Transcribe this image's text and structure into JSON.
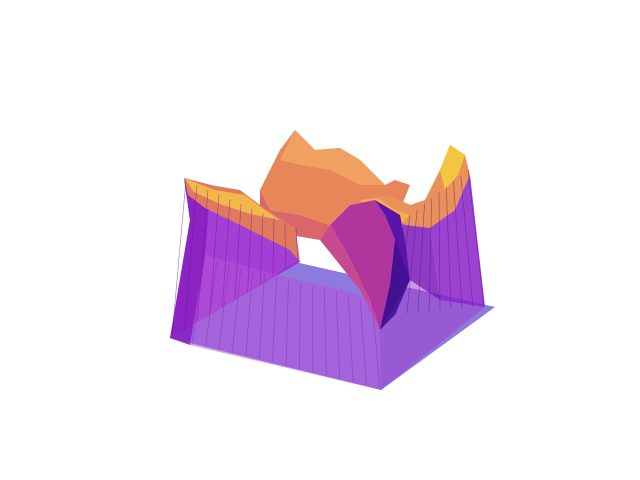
{
  "scene": {
    "type": "3d-surface",
    "colormap": "plasma",
    "base_plane_color": "#6a5acd",
    "colors": {
      "low": "#6a1fb8",
      "mid": "#c13ab0",
      "high": "#f0c030",
      "edge": "#5a1a8a",
      "ridge": "#f5a623"
    }
  }
}
